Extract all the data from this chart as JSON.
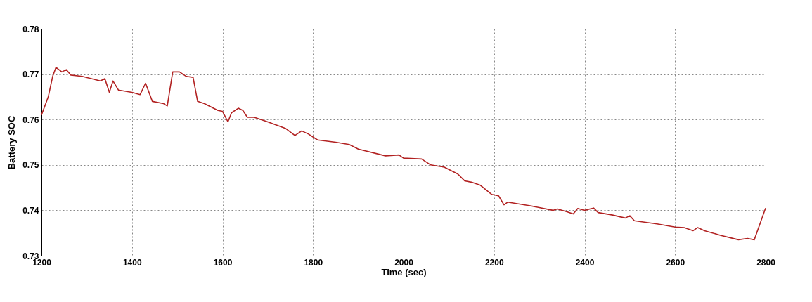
{
  "chart_data": {
    "type": "line",
    "xlabel": "Time (sec)",
    "ylabel": "Battery SOC",
    "x": [
      1200,
      1215,
      1225,
      1232,
      1245,
      1255,
      1265,
      1290,
      1310,
      1330,
      1340,
      1350,
      1358,
      1370,
      1400,
      1418,
      1430,
      1445,
      1470,
      1478,
      1490,
      1505,
      1520,
      1535,
      1545,
      1560,
      1590,
      1600,
      1612,
      1620,
      1635,
      1645,
      1655,
      1670,
      1700,
      1740,
      1760,
      1775,
      1790,
      1810,
      1850,
      1880,
      1900,
      1960,
      1990,
      2000,
      2040,
      2060,
      2090,
      2120,
      2135,
      2150,
      2170,
      2195,
      2210,
      2222,
      2230,
      2280,
      2330,
      2340,
      2360,
      2375,
      2385,
      2400,
      2420,
      2430,
      2460,
      2490,
      2500,
      2510,
      2560,
      2600,
      2620,
      2640,
      2650,
      2665,
      2700,
      2740,
      2760,
      2775,
      2800
    ],
    "series": [
      {
        "color": "#b22222",
        "values": [
          0.761,
          0.765,
          0.7696,
          0.7715,
          0.7705,
          0.771,
          0.7698,
          0.7695,
          0.769,
          0.7685,
          0.769,
          0.766,
          0.7685,
          0.7665,
          0.766,
          0.7655,
          0.768,
          0.764,
          0.7635,
          0.763,
          0.7705,
          0.7705,
          0.7695,
          0.7693,
          0.764,
          0.7635,
          0.762,
          0.7618,
          0.7595,
          0.7615,
          0.7625,
          0.762,
          0.7605,
          0.7605,
          0.7595,
          0.758,
          0.7565,
          0.7575,
          0.7568,
          0.7555,
          0.755,
          0.7545,
          0.7535,
          0.752,
          0.7522,
          0.7515,
          0.7513,
          0.75,
          0.7495,
          0.748,
          0.7465,
          0.7462,
          0.7455,
          0.7435,
          0.7432,
          0.7412,
          0.7418,
          0.741,
          0.74,
          0.7403,
          0.7397,
          0.7392,
          0.7404,
          0.74,
          0.7405,
          0.7395,
          0.739,
          0.7383,
          0.7388,
          0.7377,
          0.737,
          0.7363,
          0.7362,
          0.7355,
          0.7362,
          0.7355,
          0.7345,
          0.7335,
          0.7338,
          0.7335,
          0.7405
        ]
      }
    ],
    "xlim": [
      1200,
      2800
    ],
    "xticks": [
      1200,
      1400,
      1600,
      1800,
      2000,
      2200,
      2400,
      2600,
      2800
    ],
    "ylim": [
      0.73,
      0.78
    ],
    "yticks": [
      0.73,
      0.74,
      0.75,
      0.76,
      0.77,
      0.78
    ],
    "grid": true,
    "line_style": "solid",
    "marker": "none"
  }
}
